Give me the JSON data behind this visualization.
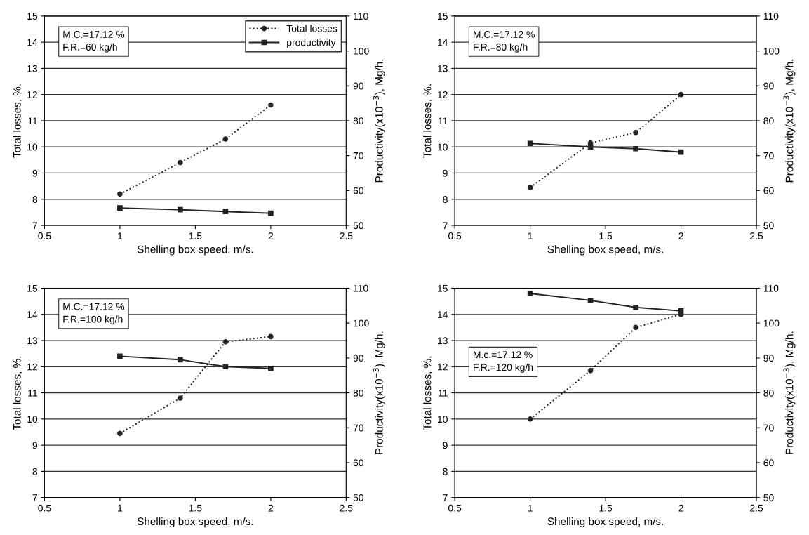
{
  "chart_data": [
    {
      "type": "line",
      "xlabel": "Shelling box speed, m/s.",
      "ylabel": "Total losses, %.",
      "y2label": "Productivity(x10$^{−3}$), Mg/h.",
      "annotations": [
        "M.C.=17.12 %\nF.R.=60 kg/h"
      ],
      "x": [
        1,
        1.4,
        1.7,
        2
      ],
      "xlim": [
        0.5,
        2.5
      ],
      "xticks": [
        0.5,
        1,
        1.5,
        2,
        2.5
      ],
      "ylim": [
        7,
        15
      ],
      "yticks": [
        7,
        8,
        9,
        10,
        11,
        12,
        13,
        14,
        15
      ],
      "y2lim": [
        50,
        110
      ],
      "y2ticks": [
        50,
        60,
        70,
        80,
        90,
        100,
        110
      ],
      "grid": "y",
      "legend": "top right",
      "series": [
        {
          "name": "Total losses",
          "color": "#222222",
          "values": [
            8.2,
            9.4,
            10.3,
            11.6
          ],
          "line_style": "dotted",
          "marker": "circle"
        },
        {
          "name": "productivity",
          "color": "#222222",
          "values": [
            55,
            54.5,
            54,
            53.5
          ],
          "axis": "y2",
          "line_style": "solid",
          "marker": "square"
        }
      ]
    },
    {
      "type": "line",
      "xlabel": "Shelling box speed, m/s.",
      "ylabel": "Total losses, %.",
      "y2label": "Productivity(x10$^{−3}$), Mg/h.",
      "annotations": [
        "M.C.=17.12 %\nF.R.=80 kg/h"
      ],
      "x": [
        1,
        1.4,
        1.7,
        2
      ],
      "xlim": [
        0.5,
        2.5
      ],
      "xticks": [
        0.5,
        1,
        1.5,
        2,
        2.5
      ],
      "ylim": [
        7,
        15
      ],
      "yticks": [
        7,
        8,
        9,
        10,
        11,
        12,
        13,
        14,
        15
      ],
      "y2lim": [
        50,
        110
      ],
      "y2ticks": [
        50,
        60,
        70,
        80,
        90,
        100,
        110
      ],
      "grid": "y",
      "series": [
        {
          "color": "#222222",
          "values": [
            8.45,
            10.15,
            10.55,
            12.0
          ],
          "line_style": "dotted",
          "marker": "circle"
        },
        {
          "color": "#222222",
          "values": [
            73.5,
            72.5,
            72,
            71
          ],
          "axis": "y2",
          "line_style": "solid",
          "marker": "square"
        }
      ]
    },
    {
      "type": "line",
      "xlabel": "Shelling box speed, m/s.",
      "ylabel": "Total losses, %.",
      "y2label": "Productivity(x10$^{−3}$), Mg/h.",
      "annotations": [
        "M.C.=17.12 %\nF.R.=100 kg/h"
      ],
      "x": [
        1,
        1.4,
        1.7,
        2
      ],
      "xlim": [
        0.5,
        2.5
      ],
      "xticks": [
        0.5,
        1,
        1.5,
        2,
        2.5
      ],
      "ylim": [
        7,
        15
      ],
      "yticks": [
        7,
        8,
        9,
        10,
        11,
        12,
        13,
        14,
        15
      ],
      "y2lim": [
        50,
        110
      ],
      "y2ticks": [
        50,
        60,
        70,
        80,
        90,
        100,
        110
      ],
      "grid": "y",
      "series": [
        {
          "color": "#222222",
          "values": [
            9.45,
            10.8,
            12.95,
            13.15
          ],
          "line_style": "dotted",
          "marker": "circle"
        },
        {
          "color": "#222222",
          "values": [
            90.5,
            89.5,
            87.5,
            87
          ],
          "axis": "y2",
          "line_style": "solid",
          "marker": "square"
        }
      ]
    },
    {
      "type": "line",
      "xlabel": "Shelling box speed, m/s.",
      "ylabel": "Total losses, %.",
      "y2label": "Productivity(x10$^{−3}$), Mg/h.",
      "annotations": [
        "M.c.=17.12 %\nF.R.=120 kg/h"
      ],
      "x": [
        1,
        1.4,
        1.7,
        2
      ],
      "xlim": [
        0.5,
        2.5
      ],
      "xticks": [
        0.5,
        1,
        1.5,
        2,
        2.5
      ],
      "ylim": [
        7,
        15
      ],
      "yticks": [
        7,
        8,
        9,
        10,
        11,
        12,
        13,
        14,
        15
      ],
      "y2lim": [
        50,
        110
      ],
      "y2ticks": [
        50,
        60,
        70,
        80,
        90,
        100,
        110
      ],
      "grid": "y",
      "series": [
        {
          "color": "#222222",
          "values": [
            10.0,
            11.85,
            13.5,
            14.0
          ],
          "line_style": "dotted",
          "marker": "circle"
        },
        {
          "color": "#222222",
          "values": [
            108.5,
            106.5,
            104.5,
            103.5
          ],
          "axis": "y2",
          "line_style": "solid",
          "marker": "square"
        }
      ]
    }
  ]
}
